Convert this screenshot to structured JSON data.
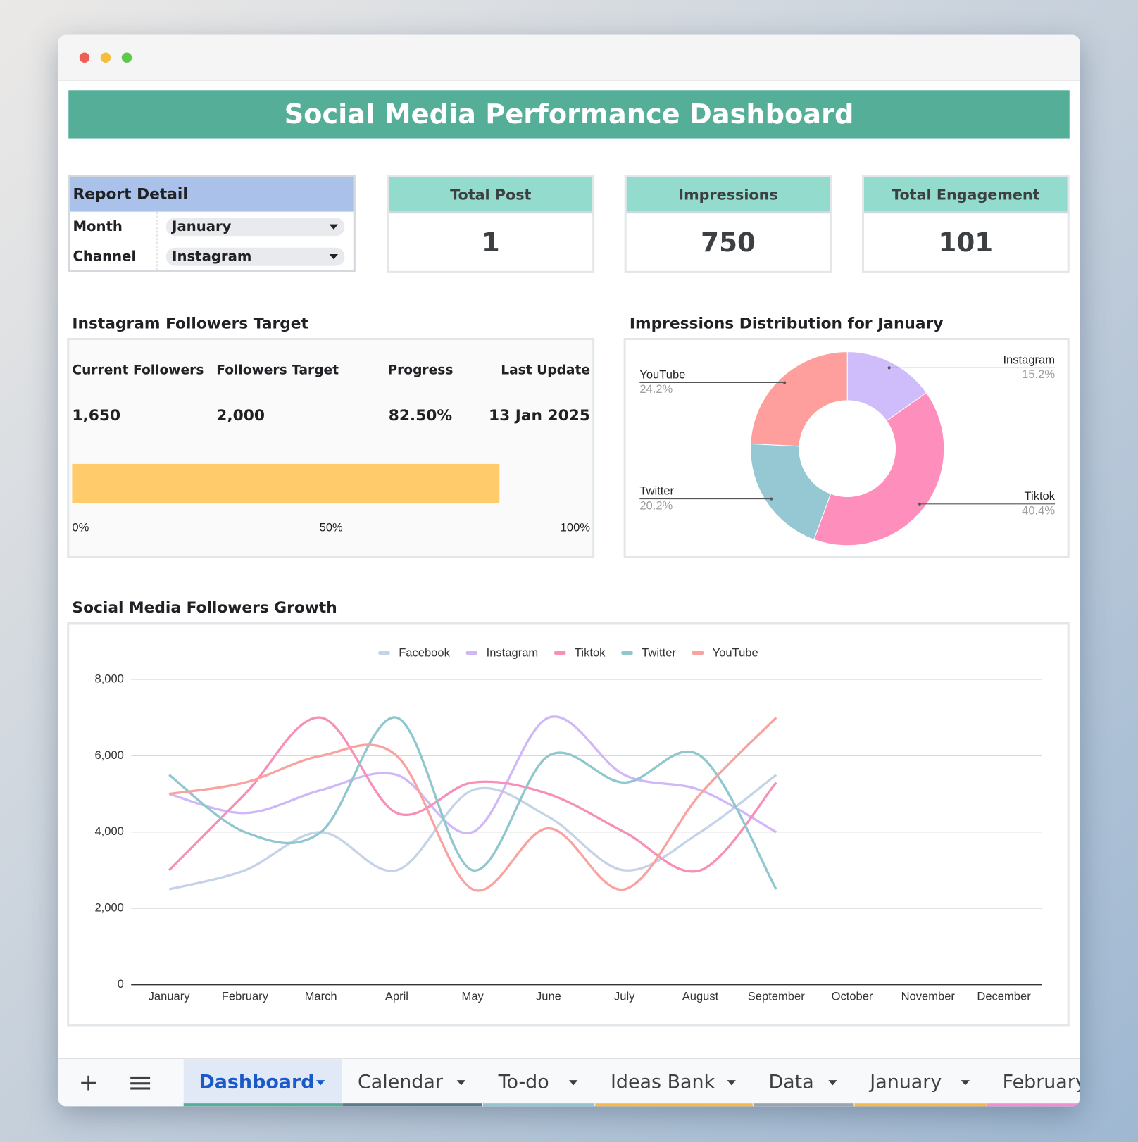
{
  "header": {
    "title": "Social Media Performance Dashboard"
  },
  "report_detail": {
    "title": "Report Detail",
    "rows": [
      {
        "label": "Month",
        "value": "January"
      },
      {
        "label": "Channel",
        "value": "Instagram"
      }
    ]
  },
  "kpis": [
    {
      "label": "Total Post",
      "value": 1
    },
    {
      "label": "Impressions",
      "value": 750
    },
    {
      "label": "Total Engagement",
      "value": 101
    }
  ],
  "followers_target": {
    "title": "Instagram Followers Target",
    "columns": [
      "Current Followers",
      "Followers Target",
      "Progress",
      "Last Update"
    ],
    "values": [
      "1,650",
      "2,000",
      "82.50%",
      "13 Jan 2025"
    ]
  },
  "chart_data": [
    {
      "type": "progress",
      "values": [
        82.5
      ],
      "color": "#ffcb6b",
      "xlim": [
        0,
        100
      ],
      "xticks": [
        {
          "value": 0,
          "label": "0%"
        },
        {
          "value": 50,
          "label": "50%"
        },
        {
          "value": 100,
          "label": "100%"
        }
      ]
    },
    {
      "type": "donut",
      "title": "Impressions Distribution for January",
      "categories": [
        "Instagram",
        "Tiktok",
        "Twitter",
        "YouTube"
      ],
      "values": [
        15.2,
        40.4,
        20.2,
        24.2
      ],
      "value_labels": [
        "15.2%",
        "40.4%",
        "20.2%",
        "24.2%"
      ],
      "colors": [
        "#cfbdfb",
        "#fe8fbd",
        "#95c8d3",
        "#fe9f9e"
      ]
    },
    {
      "type": "line",
      "title": "Social Media Followers Growth",
      "categories": [
        "January",
        "February",
        "March",
        "April",
        "May",
        "June",
        "July",
        "August",
        "September",
        "October",
        "November",
        "December"
      ],
      "series": [
        {
          "name": "Facebook",
          "color": "#c5d3e8",
          "values": [
            2500,
            3000,
            4000,
            3000,
            5100,
            4400,
            3000,
            4000,
            5500,
            null,
            null,
            null
          ]
        },
        {
          "name": "Instagram",
          "color": "#d0b8f8",
          "values": [
            5000,
            4500,
            5100,
            5500,
            4000,
            7000,
            5500,
            5100,
            4000,
            null,
            null,
            null
          ]
        },
        {
          "name": "Tiktok",
          "color": "#f78fb8",
          "values": [
            3000,
            5000,
            7000,
            4500,
            5300,
            5000,
            4000,
            3000,
            5300,
            null,
            null,
            null
          ]
        },
        {
          "name": "Twitter",
          "color": "#8fc7cf",
          "values": [
            5500,
            4000,
            4000,
            7000,
            3000,
            6000,
            5300,
            6000,
            2500,
            null,
            null,
            null
          ]
        },
        {
          "name": "YouTube",
          "color": "#f9a3a0",
          "values": [
            5000,
            5300,
            6000,
            6000,
            2500,
            4100,
            2500,
            5000,
            7000,
            null,
            null,
            null
          ]
        }
      ],
      "ylim": [
        0,
        8000
      ],
      "yticks": [
        0,
        {
          "value": 2000,
          "label": "2,000"
        },
        {
          "value": 4000,
          "label": "4,000"
        },
        {
          "value": 6000,
          "label": "6,000"
        },
        {
          "value": 8000,
          "label": "8,000"
        }
      ],
      "grid": true,
      "legend": "top"
    }
  ],
  "tabs": [
    {
      "name": "Dashboard",
      "color": "#55ae98"
    },
    {
      "name": "Calendar",
      "color": "#5b7b8a"
    },
    {
      "name": "To-do",
      "color": "#94c3d2"
    },
    {
      "name": "Ideas Bank",
      "color": "#f7b84a"
    },
    {
      "name": "Data",
      "color": "#9aa5ab"
    },
    {
      "name": "January",
      "color": "#f7b84a"
    },
    {
      "name": "February",
      "color": "#f48fcf"
    }
  ]
}
